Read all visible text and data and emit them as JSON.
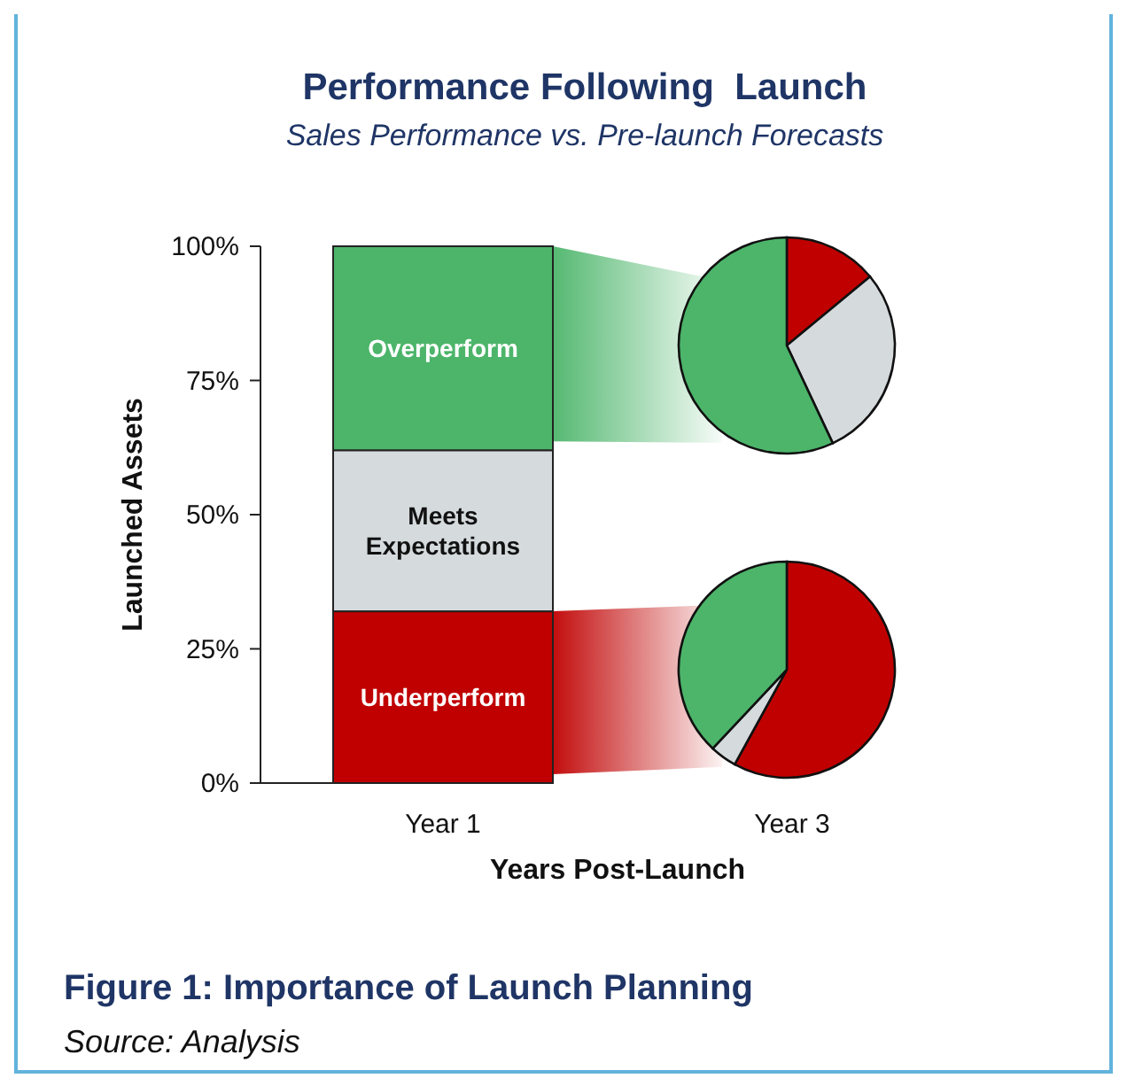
{
  "chart_data": [
    {
      "type": "bar",
      "title": "Performance Following  Launch",
      "subtitle": "Sales Performance vs. Pre-launch Forecasts",
      "xlabel": "Years Post-Launch",
      "ylabel": "Launched Assets",
      "categories": [
        "Year 1",
        "Year 3"
      ],
      "stacked": true,
      "series": [
        {
          "name": "Underperform",
          "color": "#c00000",
          "values": [
            32,
            null
          ]
        },
        {
          "name": "Meets Expectations",
          "color": "#d5dadd",
          "values": [
            30,
            null
          ]
        },
        {
          "name": "Overperform",
          "color": "#4cb56a",
          "values": [
            38,
            null
          ]
        }
      ],
      "ylim": [
        0,
        100
      ],
      "yticks": [
        {
          "value": 0,
          "label": "0%"
        },
        {
          "value": 25,
          "label": "25%"
        },
        {
          "value": 50,
          "label": "50%"
        },
        {
          "value": 75,
          "label": "75%"
        },
        {
          "value": 100,
          "label": "100%"
        }
      ],
      "annotations": [
        "Figure 1: Importance of Launch Planning",
        "Source: Analysis"
      ]
    },
    {
      "type": "pie",
      "categories": [
        null,
        null,
        null
      ],
      "values": [
        14,
        29,
        57
      ],
      "colors": [
        "#c00000",
        "#d5dadd",
        "#4cb56a"
      ]
    },
    {
      "type": "pie",
      "categories": [
        null,
        null,
        null
      ],
      "values": [
        58,
        4,
        38
      ],
      "colors": [
        "#c00000",
        "#d5dadd",
        "#4cb56a"
      ]
    }
  ]
}
